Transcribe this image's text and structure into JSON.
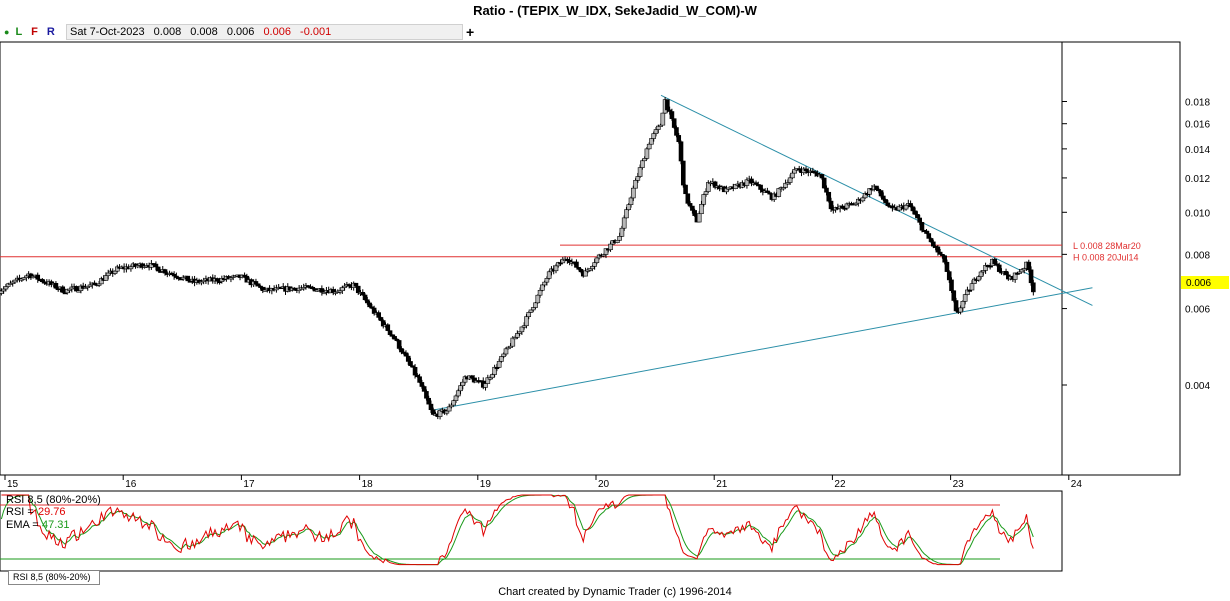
{
  "title": "Ratio - (TEPIX_W_IDX, SekeJadid_W_COM)-W",
  "toolbar": {
    "buttons": [
      "L",
      "F",
      "R"
    ],
    "date": "Sat 7-Oct-2023",
    "open": "0.008",
    "high": "0.008",
    "low": "0.006",
    "close": "0.006",
    "change": "-0.001",
    "add_label": "+"
  },
  "chart_data": {
    "type": "candlestick",
    "y_scale": "log",
    "y_ticks": [
      "0.018",
      "0.016",
      "0.014",
      "0.012",
      "0.010",
      "0.008",
      "0.006",
      "0.004"
    ],
    "x_ticks": [
      "15",
      "16",
      "17",
      "18",
      "19",
      "20",
      "21",
      "22",
      "23",
      "24"
    ],
    "last_price_label": "0.006",
    "levels": [
      {
        "label": "L 0.008 28Mar20",
        "value": 0.0084,
        "color": "#e03030"
      },
      {
        "label": "H 0.008 20Jul14",
        "value": 0.0079,
        "color": "#e03030"
      }
    ],
    "close_path": [
      [
        14.95,
        0.0066
      ],
      [
        15.2,
        0.0072
      ],
      [
        15.5,
        0.0066
      ],
      [
        15.75,
        0.0068
      ],
      [
        15.95,
        0.0074
      ],
      [
        16.2,
        0.0076
      ],
      [
        16.6,
        0.0069
      ],
      [
        17.0,
        0.0071
      ],
      [
        17.2,
        0.0066
      ],
      [
        17.5,
        0.0067
      ],
      [
        17.8,
        0.0066
      ],
      [
        17.95,
        0.0068
      ],
      [
        18.1,
        0.006
      ],
      [
        18.3,
        0.0051
      ],
      [
        18.5,
        0.0041
      ],
      [
        18.62,
        0.0034
      ],
      [
        18.75,
        0.0035
      ],
      [
        18.9,
        0.0042
      ],
      [
        19.05,
        0.004
      ],
      [
        19.2,
        0.0046
      ],
      [
        19.4,
        0.0056
      ],
      [
        19.6,
        0.0072
      ],
      [
        19.75,
        0.0079
      ],
      [
        19.9,
        0.0072
      ],
      [
        20.0,
        0.0078
      ],
      [
        20.2,
        0.0088
      ],
      [
        20.3,
        0.011
      ],
      [
        20.45,
        0.0145
      ],
      [
        20.55,
        0.016
      ],
      [
        20.58,
        0.0183
      ],
      [
        20.7,
        0.0145
      ],
      [
        20.75,
        0.011
      ],
      [
        20.85,
        0.0095
      ],
      [
        20.95,
        0.0118
      ],
      [
        21.1,
        0.0112
      ],
      [
        21.3,
        0.0118
      ],
      [
        21.5,
        0.0108
      ],
      [
        21.7,
        0.0126
      ],
      [
        21.9,
        0.0122
      ],
      [
        22.0,
        0.0101
      ],
      [
        22.2,
        0.0105
      ],
      [
        22.35,
        0.0115
      ],
      [
        22.5,
        0.0101
      ],
      [
        22.65,
        0.0104
      ],
      [
        22.8,
        0.0088
      ],
      [
        22.95,
        0.0077
      ],
      [
        23.05,
        0.0058
      ],
      [
        23.15,
        0.0066
      ],
      [
        23.25,
        0.0073
      ],
      [
        23.35,
        0.0077
      ],
      [
        23.5,
        0.007
      ],
      [
        23.65,
        0.0076
      ],
      [
        23.7,
        0.0066
      ]
    ],
    "trendlines": [
      {
        "from": [
          20.55,
          0.0186
        ],
        "to": [
          24.2,
          0.0061
        ],
        "color": "#2b8fa8"
      },
      {
        "from": [
          18.62,
          0.0035
        ],
        "to": [
          24.2,
          0.0067
        ],
        "color": "#2b8fa8"
      }
    ],
    "rsi": {
      "label": "RSI 8,5 (80%-20%)",
      "rsi_label": "RSI =",
      "rsi_value": "29.76",
      "ema_label": "EMA =",
      "ema_value": "47.31",
      "upper": 80,
      "lower": 20,
      "tab_label": "RSI 8,5 (80%-20%)"
    }
  },
  "footer": "Chart created by Dynamic Trader  (c) 1996-2014",
  "colors": {
    "level_line": "#e03030",
    "trendline": "#2b8fa8",
    "rsi": "#e00000",
    "ema": "#1a9a1a",
    "last_price_bg": "#ffff00"
  }
}
